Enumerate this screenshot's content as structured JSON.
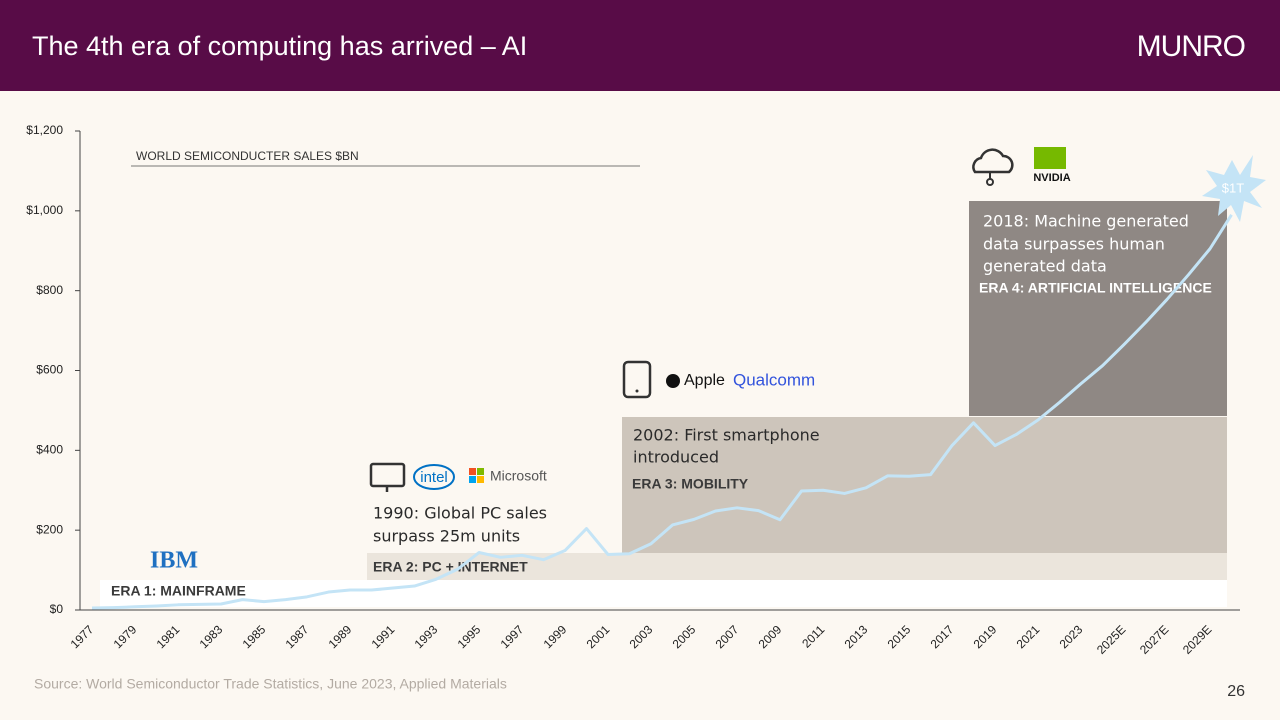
{
  "header": {
    "title": "The 4th era of computing has arrived – AI",
    "brand": "MUNRO"
  },
  "footer": {
    "source": "Source: World Semiconductor Trade Statistics, June 2023, Applied Materials",
    "page": "26"
  },
  "chart_data": {
    "type": "line",
    "title": "WORLD SEMICONDUCTER SALES $BN",
    "categories": [
      "1977",
      null,
      "1979",
      null,
      "1981",
      null,
      "1983",
      null,
      "1985",
      null,
      "1987",
      null,
      "1989",
      null,
      "1991",
      null,
      "1993",
      null,
      "1995",
      null,
      "1997",
      null,
      "1999",
      null,
      "2001",
      null,
      "2003",
      null,
      "2005",
      null,
      "2007",
      null,
      "2009",
      null,
      "2011",
      null,
      "2013",
      null,
      "2015",
      null,
      "2017",
      null,
      "2019",
      null,
      "2021",
      null,
      "2023",
      null,
      "2025E",
      null,
      "2027E",
      null,
      "2029E",
      null
    ],
    "series": [
      {
        "name": "World semiconductor sales",
        "color": "#c4e4f6",
        "values": [
          5,
          6,
          8,
          10,
          13,
          14,
          15,
          26,
          21,
          26,
          33,
          45,
          50,
          50,
          55,
          60,
          77,
          102,
          144,
          132,
          137,
          126,
          149,
          204,
          139,
          141,
          166,
          213,
          227,
          248,
          256,
          249,
          226,
          298,
          300,
          292,
          306,
          336,
          335,
          339,
          412,
          469,
          412,
          440,
          476,
          520,
          567,
          612,
          665,
          720,
          778,
          840,
          905,
          990
        ]
      }
    ],
    "ylim": [
      0,
      1200
    ],
    "yticks": [
      {
        "value": 0,
        "label": "$0"
      },
      {
        "value": 200,
        "label": "$200"
      },
      {
        "value": 400,
        "label": "$400"
      },
      {
        "value": 600,
        "label": "$600"
      },
      {
        "value": 800,
        "label": "$800"
      },
      {
        "value": 1000,
        "label": "$1,000"
      },
      {
        "value": 1200,
        "label": "$1,200"
      }
    ],
    "eras": [
      "ERA 1: MAINFRAME",
      "ERA 2: PC + INTERNET",
      "ERA 3: MOBILITY",
      "ERA 4: ARTIFICIAL INTELLIGENCE"
    ],
    "annotations": [
      [
        "1990: Global PC sales",
        "surpass 25m units"
      ],
      [
        "2002: First smartphone",
        "introduced"
      ],
      [
        "2018: Machine generated",
        "data surpasses human",
        "generated data"
      ]
    ],
    "logos": [
      "IBM",
      "intel",
      "Microsoft",
      "Apple",
      "Qualcomm",
      "NVIDIA"
    ],
    "callout": "$1T"
  }
}
